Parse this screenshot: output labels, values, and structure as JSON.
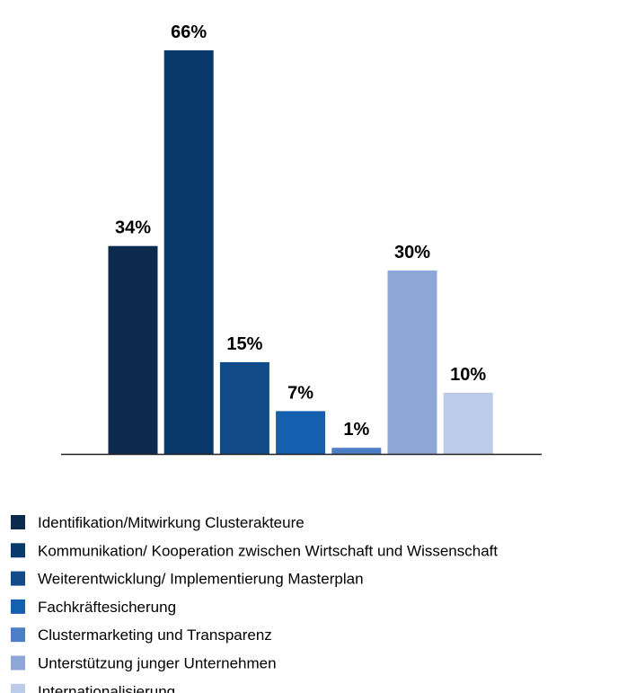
{
  "chart_data": {
    "type": "bar",
    "categories": [
      "Identifikation/Mitwirkung Clusterakteure",
      "Kommunikation/ Kooperation zwischen Wirtschaft und Wissenschaft",
      "Weiterentwicklung/ Implementierung Masterplan",
      "Fachkräftesicherung",
      "Clustermarketing und Transparenz",
      "Unterstützung junger Unternehmen",
      "Internationalisierung"
    ],
    "values": [
      34,
      66,
      15,
      7,
      1,
      30,
      10
    ],
    "value_labels": [
      "34%",
      "66%",
      "15%",
      "7%",
      "1%",
      "30%",
      "10%"
    ],
    "colors": [
      "#0c2a4e",
      "#0a396c",
      "#114b8a",
      "#1460ae",
      "#4e7ec6",
      "#8fa7d7",
      "#bccbe9"
    ],
    "legend": "bottom"
  }
}
